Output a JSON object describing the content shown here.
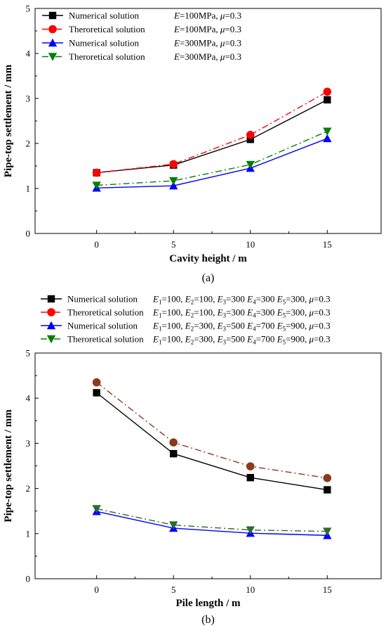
{
  "chart_data": [
    {
      "type": "line",
      "panel_label": "(a)",
      "xlabel": "Cavity height / m",
      "ylabel": "Pipe-top settlement / mm",
      "x": [
        0,
        5,
        10,
        15
      ],
      "xticks": [
        "0",
        "5",
        "10",
        "15"
      ],
      "xlim": [
        -4,
        18.5
      ],
      "ylim": [
        0,
        5
      ],
      "yticks": [
        "0",
        "1",
        "2",
        "3",
        "4",
        "5"
      ],
      "grid": false,
      "legend_position": "top-left",
      "series": [
        {
          "name": "Numerical solution",
          "param_parts": [
            [
              "E",
              "i"
            ],
            [
              "=100MPa, ",
              "n"
            ],
            [
              "μ",
              "i"
            ],
            [
              "=0.3",
              "n"
            ]
          ],
          "color": "#000000",
          "dash": "solid",
          "marker": "square",
          "values": [
            1.35,
            1.52,
            2.09,
            2.97
          ]
        },
        {
          "name": "Theroretical solution",
          "param_parts": [
            [
              "E",
              "i"
            ],
            [
              "=100MPa, ",
              "n"
            ],
            [
              "μ",
              "i"
            ],
            [
              "=0.3",
              "n"
            ]
          ],
          "color": "#ff0000",
          "dash": "dashdot",
          "marker": "circle",
          "values": [
            1.35,
            1.54,
            2.19,
            3.15
          ]
        },
        {
          "name": "Numerical solution",
          "param_parts": [
            [
              "E",
              "i"
            ],
            [
              "=300MPa, ",
              "n"
            ],
            [
              "μ",
              "i"
            ],
            [
              "=0.3",
              "n"
            ]
          ],
          "color": "#0000ff",
          "dash": "solid",
          "marker": "triangle-up",
          "values": [
            1.01,
            1.06,
            1.45,
            2.11
          ]
        },
        {
          "name": "Theroretical solution",
          "param_parts": [
            [
              "E",
              "i"
            ],
            [
              "=300MPa, ",
              "n"
            ],
            [
              "μ",
              "i"
            ],
            [
              "=0.3",
              "n"
            ]
          ],
          "color": "#008000",
          "dash": "dashdot",
          "marker": "triangle-down",
          "values": [
            1.07,
            1.17,
            1.53,
            2.27
          ]
        }
      ]
    },
    {
      "type": "line",
      "panel_label": "(b)",
      "xlabel": "Pile length / m",
      "ylabel": "Pipe-top settlement / mm",
      "x": [
        0,
        5,
        10,
        15
      ],
      "xticks": [
        "0",
        "5",
        "10",
        "15"
      ],
      "xlim": [
        -4,
        18.5
      ],
      "ylim": [
        0,
        5
      ],
      "yticks": [
        "0",
        "1",
        "2",
        "3",
        "4",
        "5"
      ],
      "grid": false,
      "legend_position": "above plot",
      "series": [
        {
          "name": "Numerical solution",
          "param_parts": [
            [
              "E",
              "i"
            ],
            [
              "1",
              "s"
            ],
            [
              "=100, ",
              "n"
            ],
            [
              "E",
              "i"
            ],
            [
              "2",
              "s"
            ],
            [
              "=100, ",
              "n"
            ],
            [
              "E",
              "i"
            ],
            [
              "3",
              "s"
            ],
            [
              "=300 ",
              "n"
            ],
            [
              "E",
              "i"
            ],
            [
              "4",
              "s"
            ],
            [
              "=300 ",
              "n"
            ],
            [
              "E",
              "i"
            ],
            [
              "5",
              "s"
            ],
            [
              "=300, ",
              "n"
            ],
            [
              "μ",
              "i"
            ],
            [
              "=0.3",
              "n"
            ]
          ],
          "color": "#000000",
          "dash": "solid",
          "marker": "square",
          "values": [
            4.12,
            2.77,
            2.24,
            1.97
          ]
        },
        {
          "name": "Theroretical solution",
          "param_parts": [
            [
              "E",
              "i"
            ],
            [
              "1",
              "s"
            ],
            [
              "=100, ",
              "n"
            ],
            [
              "E",
              "i"
            ],
            [
              "2",
              "s"
            ],
            [
              "=100, ",
              "n"
            ],
            [
              "E",
              "i"
            ],
            [
              "3",
              "s"
            ],
            [
              "=300 ",
              "n"
            ],
            [
              "E",
              "i"
            ],
            [
              "4",
              "s"
            ],
            [
              "=300 ",
              "n"
            ],
            [
              "E",
              "i"
            ],
            [
              "5",
              "s"
            ],
            [
              "=300, ",
              "n"
            ],
            [
              "μ",
              "i"
            ],
            [
              "=0.3",
              "n"
            ]
          ],
          "color": "#ff0000",
          "plot_color": "#8b3a1e",
          "dash": "dashdot",
          "marker": "circle",
          "values": [
            4.35,
            3.02,
            2.49,
            2.23
          ]
        },
        {
          "name": "Numerical solution",
          "param_parts": [
            [
              "E",
              "i"
            ],
            [
              "1",
              "s"
            ],
            [
              "=100, ",
              "n"
            ],
            [
              "E",
              "i"
            ],
            [
              "2",
              "s"
            ],
            [
              "=300, ",
              "n"
            ],
            [
              "E",
              "i"
            ],
            [
              "3",
              "s"
            ],
            [
              "=500 ",
              "n"
            ],
            [
              "E",
              "i"
            ],
            [
              "4",
              "s"
            ],
            [
              "=700 ",
              "n"
            ],
            [
              "E",
              "i"
            ],
            [
              "5",
              "s"
            ],
            [
              "=900, ",
              "n"
            ],
            [
              "μ",
              "i"
            ],
            [
              "=0.3",
              "n"
            ]
          ],
          "color": "#0000ff",
          "dash": "solid",
          "marker": "triangle-up",
          "values": [
            1.49,
            1.12,
            1.01,
            0.96
          ]
        },
        {
          "name": "Theroretical solution",
          "param_parts": [
            [
              "E",
              "i"
            ],
            [
              "1",
              "s"
            ],
            [
              "=100, ",
              "n"
            ],
            [
              "E",
              "i"
            ],
            [
              "2",
              "s"
            ],
            [
              "=300, ",
              "n"
            ],
            [
              "E",
              "i"
            ],
            [
              "3",
              "s"
            ],
            [
              "=500 ",
              "n"
            ],
            [
              "E",
              "i"
            ],
            [
              "4",
              "s"
            ],
            [
              "=700 ",
              "n"
            ],
            [
              "E",
              "i"
            ],
            [
              "5",
              "s"
            ],
            [
              "=900, ",
              "n"
            ],
            [
              "μ",
              "i"
            ],
            [
              "=0.3",
              "n"
            ]
          ],
          "color": "#008000",
          "plot_color": "#2e6b2e",
          "dash": "dashdot",
          "marker": "triangle-down",
          "values": [
            1.55,
            1.19,
            1.08,
            1.05
          ]
        }
      ]
    }
  ]
}
